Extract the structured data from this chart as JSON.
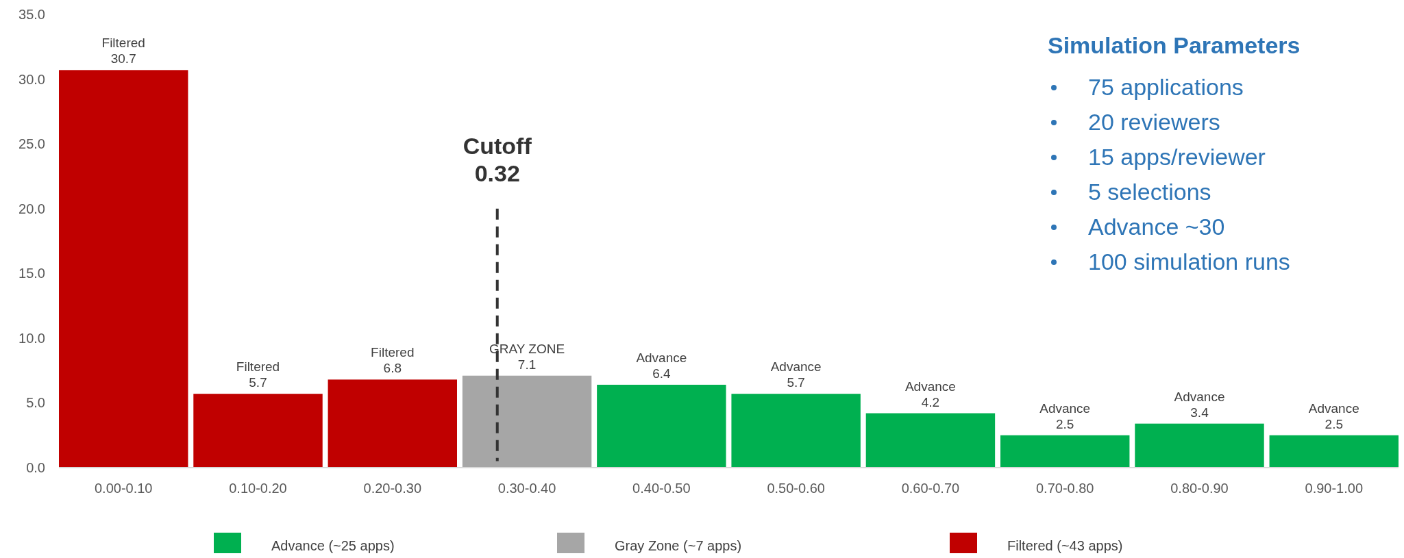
{
  "chart_data": {
    "type": "bar",
    "categories": [
      "0.00-0.10",
      "0.10-0.20",
      "0.20-0.30",
      "0.30-0.40",
      "0.40-0.50",
      "0.50-0.60",
      "0.60-0.70",
      "0.70-0.80",
      "0.80-0.90",
      "0.90-1.00"
    ],
    "series": [
      {
        "name": "Advance (~25 apps)",
        "color": "#00b050",
        "values": [
          null,
          null,
          null,
          null,
          6.4,
          5.7,
          4.2,
          2.5,
          3.4,
          2.5
        ]
      },
      {
        "name": "Gray Zone (~7 apps)",
        "color": "#a6a6a6",
        "values": [
          null,
          null,
          null,
          7.1,
          null,
          null,
          null,
          null,
          null,
          null
        ]
      },
      {
        "name": "Filtered (~43 apps)",
        "color": "#c00000",
        "values": [
          30.7,
          5.7,
          6.8,
          null,
          null,
          null,
          null,
          null,
          null,
          null
        ]
      }
    ],
    "value_labels": [
      "Filtered\n30.7",
      "Filtered\n5.7",
      "Filtered\n6.8",
      "GRAY ZONE\n7.1",
      "Advance\n6.4",
      "Advance\n5.7",
      "Advance\n4.2",
      "Advance\n2.5",
      "Advance\n3.4",
      "Advance\n2.5"
    ],
    "ylim": [
      0,
      35
    ],
    "yticks": [
      {
        "value": 0,
        "label": "0.0"
      },
      {
        "value": 5,
        "label": "5.0"
      },
      {
        "value": 10,
        "label": "10.0"
      },
      {
        "value": 15,
        "label": "15.0"
      },
      {
        "value": 20,
        "label": "20.0"
      },
      {
        "value": 25,
        "label": "25.0"
      },
      {
        "value": 30,
        "label": "30.0"
      },
      {
        "value": 35,
        "label": "35.0"
      }
    ],
    "ref_lines": [
      {
        "axis": "x",
        "value": "0.30-0.40",
        "label": "Cutoff\n0.32",
        "line_style": "dashed",
        "color": "#333333"
      }
    ],
    "annotations": [
      "Simulation Parameters",
      "75 applications",
      "20 reviewers",
      "15 apps/reviewer",
      "5 selections",
      "Advance ~30",
      "100 simulation runs"
    ],
    "grid": false,
    "legend": "bottom"
  }
}
